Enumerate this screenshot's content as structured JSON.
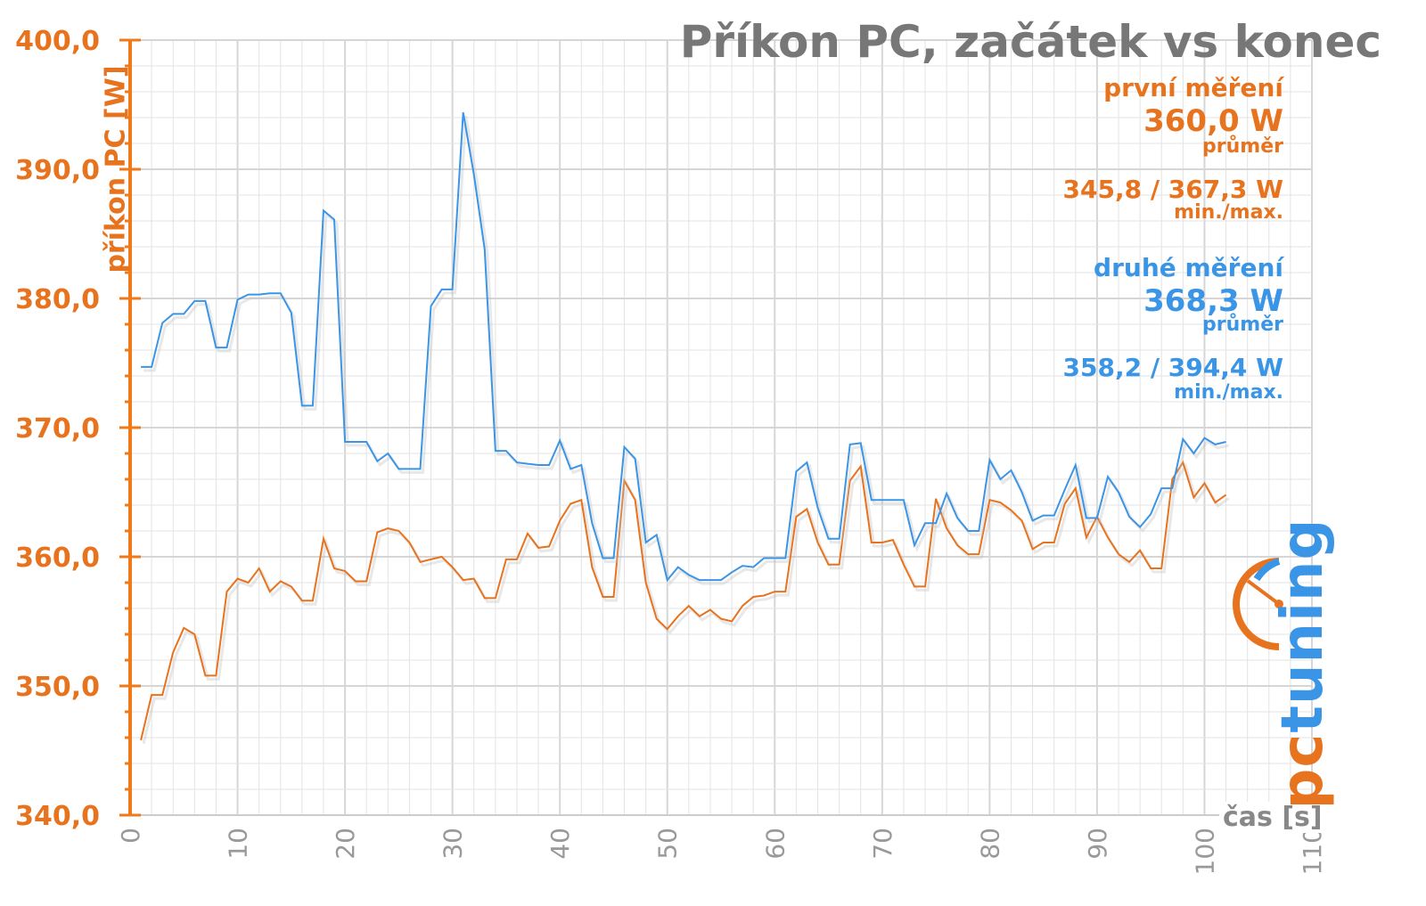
{
  "chart_data": {
    "type": "line",
    "title": "Příkon PC, začátek vs konec",
    "xlabel": "čas [s]",
    "ylabel": "příkon PC [W]",
    "xlim": [
      0,
      110
    ],
    "ylim": [
      340,
      400
    ],
    "x_ticks": [
      "0",
      "10",
      "20",
      "30",
      "40",
      "50",
      "60",
      "70",
      "80",
      "90",
      "100",
      "110"
    ],
    "y_ticks": [
      "340,0",
      "350,0",
      "360,0",
      "370,0",
      "380,0",
      "390,0",
      "400,0"
    ],
    "grid": true,
    "x": [
      1,
      2,
      3,
      4,
      5,
      6,
      7,
      8,
      9,
      10,
      11,
      12,
      13,
      14,
      15,
      16,
      17,
      18,
      19,
      20,
      21,
      22,
      23,
      24,
      25,
      26,
      27,
      28,
      29,
      30,
      31,
      32,
      33,
      34,
      35,
      36,
      37,
      38,
      39,
      40,
      41,
      42,
      43,
      44,
      45,
      46,
      47,
      48,
      49,
      50,
      51,
      52,
      53,
      54,
      55,
      56,
      57,
      58,
      59,
      60,
      61,
      62,
      63,
      64,
      65,
      66,
      67,
      68,
      69,
      70,
      71,
      72,
      73,
      74,
      75,
      76,
      77,
      78,
      79,
      80,
      81,
      82,
      83,
      84,
      85,
      86,
      87,
      88,
      89,
      90,
      91,
      92,
      93,
      94,
      95,
      96,
      97,
      98,
      99,
      100,
      101,
      102
    ],
    "series": [
      {
        "name": "první měření",
        "color": "#e8731e",
        "values": [
          345.8,
          349.3,
          349.3,
          352.6,
          354.5,
          354.0,
          350.8,
          350.8,
          357.3,
          358.3,
          358.0,
          359.1,
          357.3,
          358.1,
          357.7,
          356.6,
          356.6,
          361.4,
          359.1,
          358.9,
          358.1,
          358.1,
          361.9,
          362.2,
          362.0,
          361.1,
          359.6,
          359.8,
          360.0,
          359.2,
          358.2,
          358.3,
          356.8,
          356.8,
          359.8,
          359.8,
          361.8,
          360.7,
          360.8,
          362.8,
          364.1,
          364.4,
          359.2,
          356.9,
          356.9,
          365.9,
          364.4,
          358.0,
          355.2,
          354.4,
          355.4,
          356.2,
          355.4,
          355.9,
          355.2,
          355.0,
          356.2,
          356.9,
          357.0,
          357.3,
          357.3,
          363.1,
          363.7,
          361.1,
          359.4,
          359.4,
          365.9,
          367.0,
          361.1,
          361.1,
          361.3,
          359.4,
          357.7,
          357.7,
          364.5,
          362.2,
          360.9,
          360.2,
          360.2,
          364.4,
          364.2,
          363.6,
          362.8,
          360.6,
          361.1,
          361.1,
          364.1,
          365.3,
          361.5,
          363.1,
          361.5,
          360.2,
          359.6,
          360.5,
          359.1,
          359.1,
          366.0,
          367.3,
          364.6,
          365.7,
          364.2,
          364.8
        ]
      },
      {
        "name": "druhé měření",
        "color": "#3b95e6",
        "values": [
          374.7,
          374.7,
          378.1,
          378.8,
          378.8,
          379.8,
          379.8,
          376.2,
          376.2,
          379.9,
          380.3,
          380.3,
          380.4,
          380.4,
          378.9,
          371.7,
          371.7,
          386.8,
          386.1,
          368.9,
          368.9,
          368.9,
          367.4,
          368.0,
          366.8,
          366.8,
          366.8,
          379.4,
          380.7,
          380.7,
          394.4,
          389.6,
          383.8,
          368.2,
          368.2,
          367.3,
          367.2,
          367.1,
          367.1,
          369.0,
          366.8,
          367.1,
          362.6,
          359.9,
          359.9,
          368.5,
          367.6,
          361.1,
          361.7,
          358.2,
          359.2,
          358.6,
          358.2,
          358.2,
          358.2,
          358.8,
          359.3,
          359.2,
          359.9,
          359.9,
          359.9,
          366.6,
          367.3,
          363.8,
          361.4,
          361.4,
          368.7,
          368.8,
          364.4,
          364.4,
          364.4,
          364.4,
          360.9,
          362.6,
          362.6,
          364.9,
          363.0,
          362.0,
          362.0,
          367.5,
          366.0,
          366.7,
          365.0,
          362.8,
          363.2,
          363.2,
          365.2,
          367.1,
          363.0,
          363.0,
          366.2,
          365.0,
          363.1,
          362.3,
          363.3,
          365.3,
          365.3,
          369.1,
          368.0,
          369.2,
          368.7,
          368.9
        ]
      }
    ]
  },
  "stats": {
    "first": {
      "label": "první měření",
      "avg_value": "360,0 W",
      "avg_label": "průměr",
      "range_value": "345,8 / 367,3 W",
      "range_label": "min./max."
    },
    "second": {
      "label": "druhé měření",
      "avg_value": "368,3 W",
      "avg_label": "průměr",
      "range_value": "358,2 / 394,4 W",
      "range_label": "min./max."
    }
  },
  "logo": {
    "text_pc": "pc",
    "text_tuning": "tuning",
    "color_orange": "#e8731e",
    "color_blue": "#3b95e6",
    "icon": "gauge-icon"
  },
  "colors": {
    "axis": "#f07a1a",
    "grid": "#e3e3e3",
    "tick_text_y": "#e8731e",
    "tick_text_x": "#999999"
  }
}
